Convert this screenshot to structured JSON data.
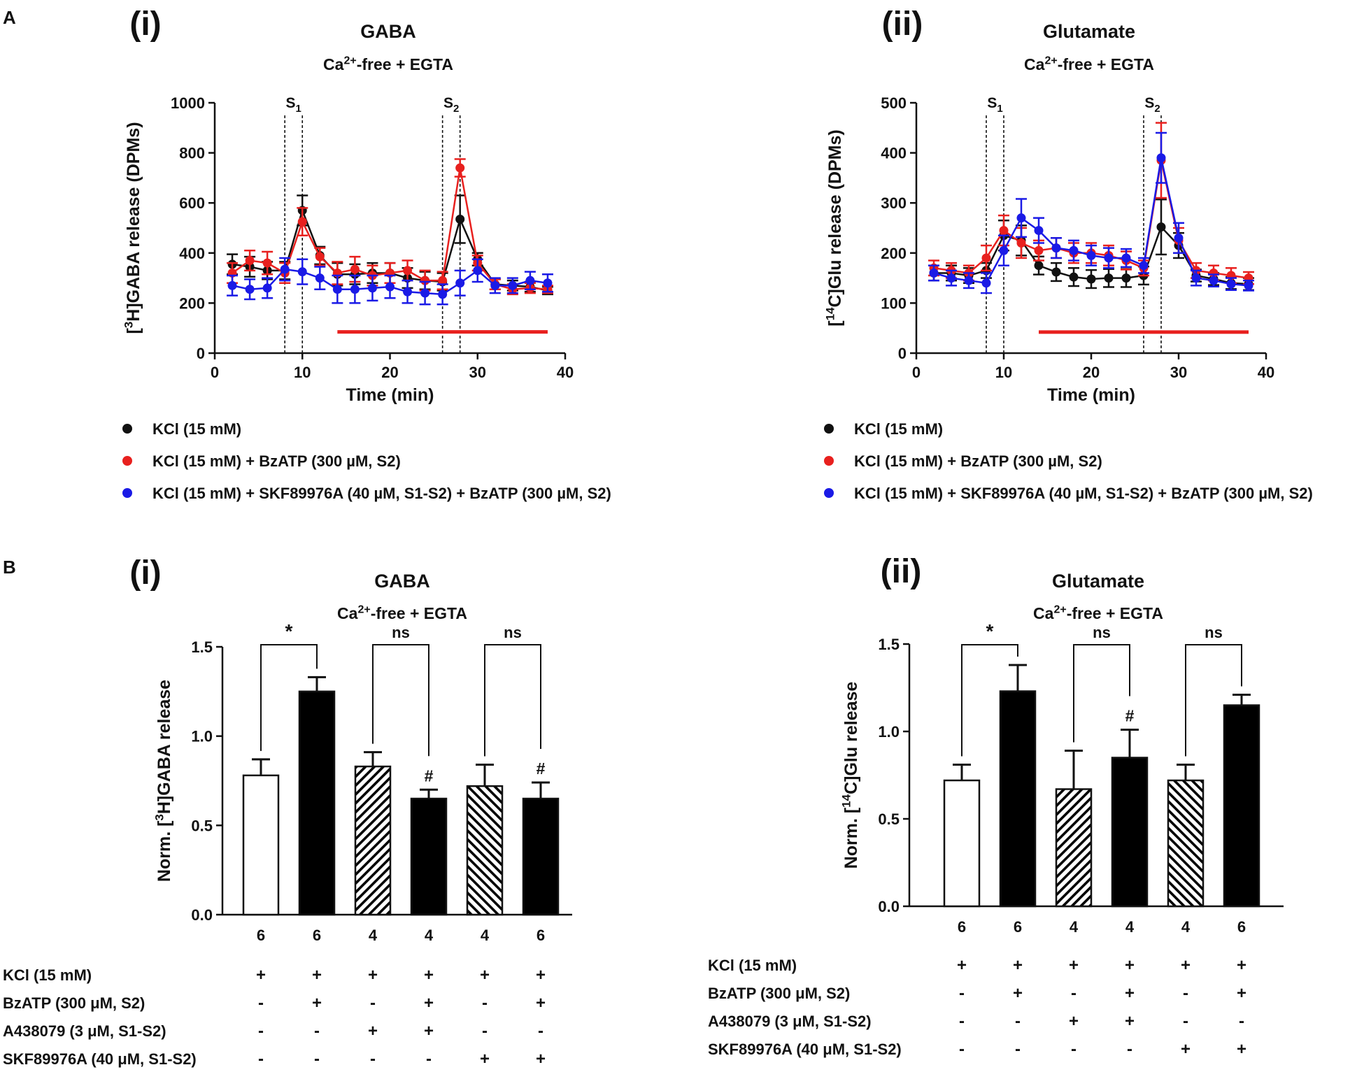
{
  "panel_labels": {
    "a": "A",
    "b": "B"
  },
  "chart_data": [
    {
      "type": "line",
      "panel": "A(i)",
      "roman": "(i)",
      "title": "GABA",
      "subtitle": {
        "pre": "Ca",
        "sup": "2+",
        "post": "-free + EGTA"
      },
      "xlabel": "Time (min)",
      "ylabel": {
        "pre": "[",
        "sup": "3",
        "post": "H]GABA release (DPMs)"
      },
      "xlim": [
        0,
        40
      ],
      "ylim": [
        0,
        1000
      ],
      "xticks": [
        0,
        10,
        20,
        30,
        40
      ],
      "yticks": [
        0,
        200,
        400,
        600,
        800,
        1000
      ],
      "stim_markers": [
        {
          "label": "S",
          "sub": "1",
          "x": [
            8,
            10
          ]
        },
        {
          "label": "S",
          "sub": "2",
          "x": [
            26,
            28
          ]
        }
      ],
      "drug_bar": {
        "x": [
          14,
          38
        ],
        "y": 85,
        "color": "#e8201e"
      },
      "x": [
        2,
        4,
        6,
        8,
        10,
        12,
        14,
        16,
        18,
        20,
        22,
        24,
        26,
        28,
        30,
        32,
        34,
        36,
        38
      ],
      "series": [
        {
          "name": "KCl (15 mM)",
          "color": "#111111",
          "values": [
            355,
            345,
            330,
            330,
            570,
            390,
            315,
            315,
            320,
            320,
            300,
            290,
            285,
            535,
            375,
            275,
            270,
            265,
            250
          ],
          "errors": [
            40,
            40,
            35,
            35,
            60,
            35,
            45,
            40,
            40,
            40,
            40,
            35,
            35,
            95,
            25,
            20,
            20,
            20,
            15
          ]
        },
        {
          "name": "KCl (15 mM) + BzATP (300 µM, S2)",
          "color": "#e8201e",
          "values": [
            320,
            370,
            360,
            320,
            525,
            385,
            320,
            335,
            310,
            320,
            330,
            290,
            290,
            740,
            360,
            275,
            255,
            260,
            255
          ],
          "errors": [
            40,
            40,
            45,
            40,
            55,
            35,
            45,
            50,
            40,
            40,
            40,
            40,
            35,
            35,
            30,
            20,
            20,
            20,
            15
          ]
        },
        {
          "name": "KCl (15 mM) + SKF89976A (40 µM, S1-S2) + BzATP (300 µM, S2)",
          "color": "#1a1ae6",
          "values": [
            270,
            255,
            260,
            335,
            325,
            300,
            255,
            255,
            260,
            265,
            245,
            240,
            235,
            280,
            330,
            270,
            270,
            290,
            280
          ],
          "errors": [
            40,
            40,
            40,
            45,
            50,
            45,
            55,
            55,
            50,
            45,
            45,
            45,
            40,
            50,
            45,
            30,
            30,
            35,
            35
          ]
        }
      ]
    },
    {
      "type": "line",
      "panel": "A(ii)",
      "roman": "(ii)",
      "title": "Glutamate",
      "subtitle": {
        "pre": "Ca",
        "sup": "2+",
        "post": "-free + EGTA"
      },
      "xlabel": "Time (min)",
      "ylabel": {
        "pre": "[",
        "sup": "14",
        "post": "C]Glu release (DPMs)"
      },
      "xlim": [
        0,
        40
      ],
      "ylim": [
        0,
        500
      ],
      "xticks": [
        0,
        10,
        20,
        30,
        40
      ],
      "yticks": [
        0,
        100,
        200,
        300,
        400,
        500
      ],
      "stim_markers": [
        {
          "label": "S",
          "sub": "1",
          "x": [
            8,
            10
          ]
        },
        {
          "label": "S",
          "sub": "2",
          "x": [
            26,
            28
          ]
        }
      ],
      "drug_bar": {
        "x": [
          14,
          38
        ],
        "y": 42,
        "color": "#e8201e"
      },
      "x": [
        2,
        4,
        6,
        8,
        10,
        12,
        14,
        16,
        18,
        20,
        22,
        24,
        26,
        28,
        30,
        32,
        34,
        36,
        38
      ],
      "series": [
        {
          "name": "KCl (15 mM)",
          "color": "#111111",
          "values": [
            160,
            160,
            155,
            165,
            235,
            225,
            175,
            162,
            152,
            148,
            150,
            150,
            155,
            252,
            215,
            155,
            148,
            140,
            138
          ],
          "errors": [
            15,
            15,
            15,
            15,
            30,
            30,
            18,
            18,
            18,
            18,
            18,
            18,
            18,
            55,
            25,
            12,
            12,
            12,
            12
          ]
        },
        {
          "name": "KCl (15 mM) + BzATP (300 µM, S2)",
          "color": "#e8201e",
          "values": [
            170,
            165,
            160,
            190,
            245,
            220,
            205,
            210,
            200,
            200,
            195,
            185,
            170,
            385,
            225,
            165,
            160,
            155,
            150
          ],
          "errors": [
            15,
            15,
            15,
            25,
            30,
            30,
            20,
            20,
            20,
            20,
            20,
            18,
            15,
            75,
            25,
            15,
            15,
            15,
            12
          ]
        },
        {
          "name": "KCl (15 mM) + SKF89976A (40 µM, S1-S2) + BzATP (300 µM, S2)",
          "color": "#1a1ae6",
          "values": [
            160,
            150,
            145,
            140,
            205,
            270,
            245,
            210,
            205,
            195,
            190,
            190,
            175,
            390,
            230,
            150,
            145,
            138,
            135
          ],
          "errors": [
            15,
            15,
            15,
            20,
            30,
            38,
            25,
            20,
            20,
            20,
            20,
            18,
            15,
            50,
            30,
            15,
            12,
            12,
            10
          ]
        }
      ]
    },
    {
      "type": "bar",
      "panel": "B(i)",
      "roman": "(i)",
      "title": "GABA",
      "subtitle": {
        "pre": "Ca",
        "sup": "2+",
        "post": "-free + EGTA"
      },
      "ylabel": {
        "pre": "Norm. [",
        "sup": "3",
        "post": "H]GABA release"
      },
      "ylim": [
        0,
        1.5
      ],
      "yticks": [
        "0.0",
        "0.5",
        "1.0",
        "1.5"
      ],
      "bars": [
        {
          "value": 0.78,
          "error": 0.09,
          "fill": "open",
          "n": "6",
          "mark": ""
        },
        {
          "value": 1.25,
          "error": 0.08,
          "fill": "solid",
          "n": "6",
          "mark": ""
        },
        {
          "value": 0.83,
          "error": 0.08,
          "fill": "hatch-back",
          "n": "4",
          "mark": ""
        },
        {
          "value": 0.65,
          "error": 0.05,
          "fill": "solid",
          "n": "4",
          "mark": "#"
        },
        {
          "value": 0.72,
          "error": 0.12,
          "fill": "hatch-fwd",
          "n": "4",
          "mark": ""
        },
        {
          "value": 0.65,
          "error": 0.09,
          "fill": "solid",
          "n": "6",
          "mark": "#"
        }
      ],
      "comparisons": [
        {
          "pair": [
            0,
            1
          ],
          "label": "*"
        },
        {
          "pair": [
            2,
            3
          ],
          "label": "ns"
        },
        {
          "pair": [
            4,
            5
          ],
          "label": "ns"
        }
      ],
      "conditions": [
        {
          "label": "KCl (15 mM)",
          "signs": [
            "+",
            "+",
            "+",
            "+",
            "+",
            "+"
          ]
        },
        {
          "label": "BzATP (300 μM, S2)",
          "signs": [
            "-",
            "+",
            "-",
            "+",
            "-",
            "+"
          ]
        },
        {
          "label": "A438079 (3 μM, S1-S2)",
          "signs": [
            "-",
            "-",
            "+",
            "+",
            "-",
            "-"
          ]
        },
        {
          "label": "SKF89976A (40 μM, S1-S2)",
          "signs": [
            "-",
            "-",
            "-",
            "-",
            "+",
            "+"
          ]
        }
      ]
    },
    {
      "type": "bar",
      "panel": "B(ii)",
      "roman": "(ii)",
      "title": "Glutamate",
      "subtitle": {
        "pre": "Ca",
        "sup": "2+",
        "post": "-free + EGTA"
      },
      "ylabel": {
        "pre": "Norm. [",
        "sup": "14",
        "post": "C]Glu release"
      },
      "ylim": [
        0,
        1.5
      ],
      "yticks": [
        "0.0",
        "0.5",
        "1.0",
        "1.5"
      ],
      "bars": [
        {
          "value": 0.72,
          "error": 0.09,
          "fill": "open",
          "n": "6",
          "mark": ""
        },
        {
          "value": 1.23,
          "error": 0.15,
          "fill": "solid",
          "n": "6",
          "mark": ""
        },
        {
          "value": 0.67,
          "error": 0.22,
          "fill": "hatch-back",
          "n": "4",
          "mark": ""
        },
        {
          "value": 0.85,
          "error": 0.16,
          "fill": "solid",
          "n": "4",
          "mark": "#"
        },
        {
          "value": 0.72,
          "error": 0.09,
          "fill": "hatch-fwd",
          "n": "4",
          "mark": ""
        },
        {
          "value": 1.15,
          "error": 0.06,
          "fill": "solid",
          "n": "6",
          "mark": ""
        }
      ],
      "comparisons": [
        {
          "pair": [
            0,
            1
          ],
          "label": "*"
        },
        {
          "pair": [
            2,
            3
          ],
          "label": "ns"
        },
        {
          "pair": [
            4,
            5
          ],
          "label": "ns"
        }
      ],
      "conditions": [
        {
          "label": "KCl (15 mM)",
          "signs": [
            "+",
            "+",
            "+",
            "+",
            "+",
            "+"
          ]
        },
        {
          "label": "BzATP (300 μM, S2)",
          "signs": [
            "-",
            "+",
            "-",
            "+",
            "-",
            "+"
          ]
        },
        {
          "label": "A438079 (3 μM, S1-S2)",
          "signs": [
            "-",
            "-",
            "+",
            "+",
            "-",
            "-"
          ]
        },
        {
          "label": "SKF89976A (40 μM, S1-S2)",
          "signs": [
            "-",
            "-",
            "-",
            "-",
            "+",
            "+"
          ]
        }
      ]
    }
  ]
}
